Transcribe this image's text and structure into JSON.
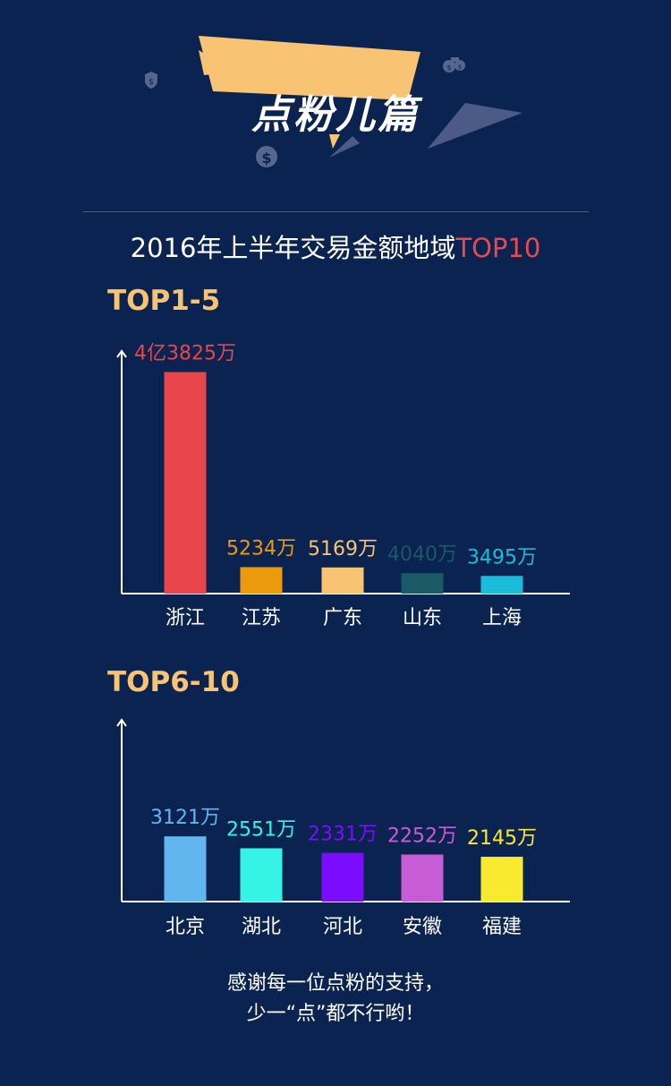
{
  "header": {
    "title": "点粉儿篇",
    "colors": {
      "banner": "#f8c373",
      "shadow": "#4b5a86",
      "coin": "#4b5a86"
    }
  },
  "main_title": {
    "prefix": "2016年上半年交易金额地域",
    "highlight": "TOP10"
  },
  "chart_data": [
    {
      "type": "bar",
      "title": "TOP1-5",
      "categories": [
        "浙江",
        "江苏",
        "广东",
        "山东",
        "上海"
      ],
      "values": [
        43825,
        5234,
        5169,
        4040,
        3495
      ],
      "labels": [
        "4亿3825万",
        "5234万",
        "5169万",
        "4040万",
        "3495万"
      ],
      "colors": [
        "#e8464a",
        "#eb9a0e",
        "#f8c373",
        "#1a5a66",
        "#19bcd9"
      ],
      "ylim": [
        0,
        48000
      ],
      "unit": "万"
    },
    {
      "type": "bar",
      "title": "TOP6-10",
      "categories": [
        "北京",
        "湖北",
        "河北",
        "安徽",
        "福建"
      ],
      "values": [
        3121,
        2551,
        2331,
        2252,
        2145
      ],
      "labels": [
        "3121万",
        "2551万",
        "2331万",
        "2252万",
        "2145万"
      ],
      "colors": [
        "#62b6f0",
        "#35f4e6",
        "#7b0cfd",
        "#c85cd6",
        "#faea2f"
      ],
      "ylim": [
        0,
        8700
      ],
      "unit": "万"
    }
  ],
  "footer": {
    "line1": "感谢每一位点粉的支持，",
    "line2": "少一“点”都不行哟！"
  }
}
